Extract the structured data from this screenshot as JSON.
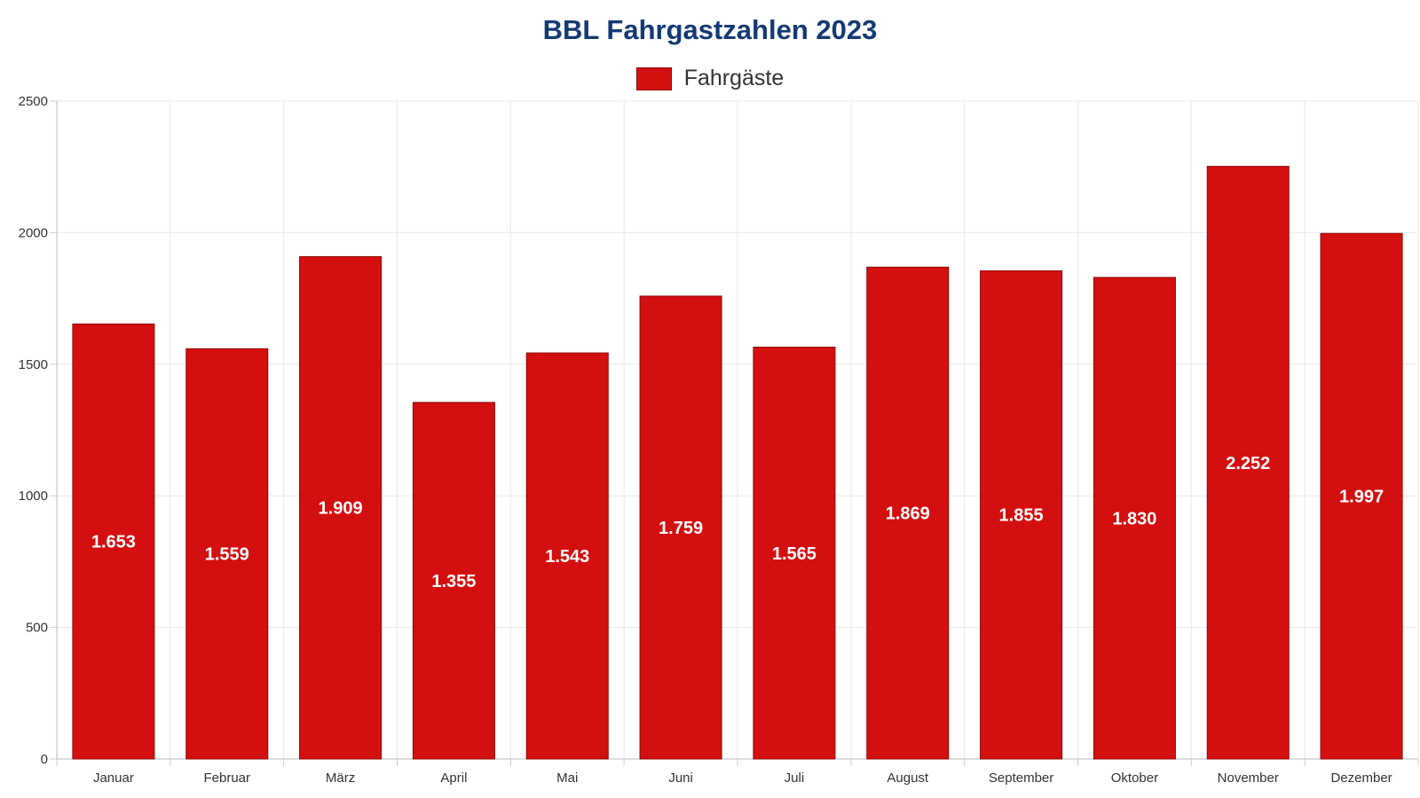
{
  "chart_data": {
    "type": "bar",
    "title": "BBL Fahrgastzahlen 2023",
    "categories": [
      "Januar",
      "Februar",
      "März",
      "April",
      "Mai",
      "Juni",
      "Juli",
      "August",
      "September",
      "Oktober",
      "November",
      "Dezember"
    ],
    "series": [
      {
        "name": "Fahrgäste",
        "values": [
          1653,
          1559,
          1909,
          1355,
          1543,
          1759,
          1565,
          1869,
          1855,
          1830,
          2252,
          1997
        ],
        "labels": [
          "1.653",
          "1.559",
          "1.909",
          "1.355",
          "1.543",
          "1.759",
          "1.565",
          "1.869",
          "1.855",
          "1.830",
          "2.252",
          "1.997"
        ],
        "color": "#d40f0f"
      }
    ],
    "ylim": [
      0,
      2500
    ],
    "yticks": [
      0,
      500,
      1000,
      1500,
      2000,
      2500
    ],
    "ytick_labels": [
      "0",
      "500",
      "1000",
      "1500",
      "2000",
      "2500"
    ],
    "grid": true,
    "legend_position": "top-center",
    "colors": {
      "title": "#143a73",
      "bar": "#d40f0f",
      "bar_border": "#8a0a0a",
      "grid": "#e8e8e8",
      "data_label": "#ffffff"
    }
  }
}
